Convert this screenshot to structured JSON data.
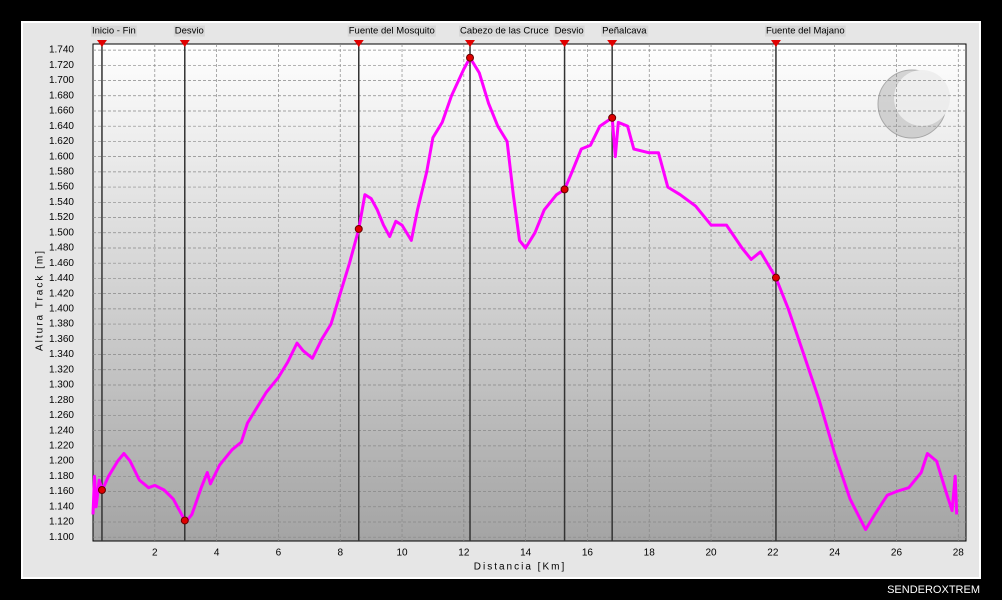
{
  "chart_data": {
    "type": "line",
    "x_label": "Distancia  [Km]",
    "y_label": "Altura Track  [m]",
    "color": "#ff00ff",
    "grid": true,
    "xlim": [
      0,
      28.25
    ],
    "ylim": [
      1095,
      1748
    ],
    "xticks": [
      2,
      4,
      6,
      8,
      10,
      12,
      14,
      16,
      18,
      20,
      22,
      24,
      26,
      28
    ],
    "yticks": [
      {
        "value": 1100,
        "label": "1.100"
      },
      {
        "value": 1120,
        "label": "1.120"
      },
      {
        "value": 1140,
        "label": "1.140"
      },
      {
        "value": 1160,
        "label": "1.160"
      },
      {
        "value": 1180,
        "label": "1.180"
      },
      {
        "value": 1200,
        "label": "1.200"
      },
      {
        "value": 1220,
        "label": "1.220"
      },
      {
        "value": 1240,
        "label": "1.240"
      },
      {
        "value": 1260,
        "label": "1.260"
      },
      {
        "value": 1280,
        "label": "1.280"
      },
      {
        "value": 1300,
        "label": "1.300"
      },
      {
        "value": 1320,
        "label": "1.320"
      },
      {
        "value": 1340,
        "label": "1.340"
      },
      {
        "value": 1360,
        "label": "1.360"
      },
      {
        "value": 1380,
        "label": "1.380"
      },
      {
        "value": 1400,
        "label": "1.400"
      },
      {
        "value": 1420,
        "label": "1.420"
      },
      {
        "value": 1440,
        "label": "1.440"
      },
      {
        "value": 1460,
        "label": "1.460"
      },
      {
        "value": 1480,
        "label": "1.480"
      },
      {
        "value": 1500,
        "label": "1.500"
      },
      {
        "value": 1520,
        "label": "1.520"
      },
      {
        "value": 1540,
        "label": "1.540"
      },
      {
        "value": 1560,
        "label": "1.560"
      },
      {
        "value": 1580,
        "label": "1.580"
      },
      {
        "value": 1600,
        "label": "1.600"
      },
      {
        "value": 1620,
        "label": "1.620"
      },
      {
        "value": 1640,
        "label": "1.640"
      },
      {
        "value": 1660,
        "label": "1.660"
      },
      {
        "value": 1680,
        "label": "1.680"
      },
      {
        "value": 1700,
        "label": "1.700"
      },
      {
        "value": 1720,
        "label": "1.720"
      },
      {
        "value": 1740,
        "label": "1.740"
      }
    ],
    "x": [
      0.0,
      0.05,
      0.1,
      0.2,
      0.3,
      0.5,
      0.8,
      1.0,
      1.2,
      1.5,
      1.8,
      2.0,
      2.3,
      2.6,
      2.8,
      3.0,
      3.2,
      3.5,
      3.7,
      3.8,
      4.1,
      4.5,
      4.8,
      5.0,
      5.3,
      5.6,
      6.0,
      6.3,
      6.6,
      6.8,
      7.1,
      7.4,
      7.7,
      8.0,
      8.3,
      8.6,
      8.8,
      9.0,
      9.2,
      9.4,
      9.6,
      9.8,
      10.0,
      10.3,
      10.5,
      10.8,
      11.0,
      11.3,
      11.6,
      12.0,
      12.2,
      12.5,
      12.8,
      13.1,
      13.4,
      13.6,
      13.8,
      14.0,
      14.3,
      14.6,
      15.0,
      15.26,
      15.5,
      15.8,
      16.1,
      16.4,
      16.8,
      16.9,
      17.0,
      17.3,
      17.5,
      18.0,
      18.3,
      18.6,
      19.0,
      19.5,
      20.0,
      20.5,
      21.0,
      21.3,
      21.6,
      22.1,
      22.5,
      23.0,
      23.5,
      24.0,
      24.5,
      25.0,
      25.3,
      25.7,
      26.0,
      26.4,
      26.8,
      27.0,
      27.3,
      27.6,
      27.8,
      27.9,
      27.95
    ],
    "values": [
      1130,
      1180,
      1140,
      1175,
      1162,
      1180,
      1200,
      1210,
      1200,
      1175,
      1165,
      1168,
      1162,
      1150,
      1135,
      1120,
      1130,
      1165,
      1185,
      1170,
      1195,
      1215,
      1225,
      1250,
      1270,
      1290,
      1310,
      1330,
      1355,
      1345,
      1335,
      1360,
      1380,
      1420,
      1460,
      1505,
      1550,
      1545,
      1530,
      1510,
      1495,
      1515,
      1510,
      1490,
      1530,
      1580,
      1625,
      1645,
      1680,
      1715,
      1730,
      1710,
      1670,
      1640,
      1620,
      1550,
      1490,
      1480,
      1500,
      1530,
      1550,
      1557,
      1580,
      1610,
      1615,
      1640,
      1651,
      1600,
      1645,
      1640,
      1610,
      1605,
      1605,
      1560,
      1550,
      1535,
      1510,
      1510,
      1480,
      1465,
      1475,
      1441,
      1400,
      1340,
      1280,
      1210,
      1150,
      1110,
      1130,
      1155,
      1160,
      1165,
      1185,
      1210,
      1200,
      1160,
      1135,
      1180,
      1130
    ],
    "waypoints": {
      "names": [
        "Inicio - Fin",
        "Desvio",
        "Fuente del Mosquito",
        "Cabezo de las Cruce",
        "Desvio",
        "Peñalcava",
        "Fuente del Majano"
      ],
      "x": [
        0.29,
        2.97,
        8.6,
        12.2,
        15.26,
        16.8,
        22.1
      ],
      "elevation": [
        1162,
        1122,
        1505,
        1730,
        1557,
        1651,
        1441
      ]
    }
  },
  "footer": "SENDEROXTREM"
}
